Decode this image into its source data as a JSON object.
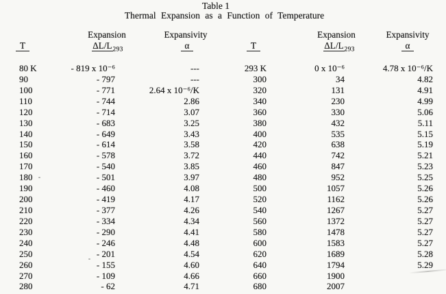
{
  "page": {
    "title": "Table 1",
    "subtitle": "Thermal Expansion as a Function of Temperature"
  },
  "headers": {
    "t": "T",
    "expansion": "Expansion",
    "delta_l": "ΔL/L",
    "delta_l_sub": "293",
    "expansivity": "Expansivity",
    "alpha": "α"
  },
  "left_rows": [
    [
      "80 K",
      "- 819 x 10⁻⁶",
      "---"
    ],
    [
      "90",
      "- 797",
      "---"
    ],
    [
      "100",
      "- 771",
      "2.64 x 10⁻⁶/K"
    ],
    [
      "110",
      "- 744",
      "2.86"
    ],
    [
      "120",
      "- 714",
      "3.07"
    ],
    [
      "130",
      "- 683",
      "3.25"
    ],
    [
      "140",
      "- 649",
      "3.43"
    ],
    [
      "150",
      "- 614",
      "3.58"
    ],
    [
      "160",
      "- 578",
      "3.72"
    ],
    [
      "170",
      "- 540",
      "3.85"
    ],
    [
      "180",
      "- 501",
      "3.97"
    ],
    [
      "190",
      "- 460",
      "4.08"
    ],
    [
      "200",
      "- 419",
      "4.17"
    ],
    [
      "210",
      "- 377",
      "4.26"
    ],
    [
      "220",
      "- 334",
      "4.34"
    ],
    [
      "230",
      "- 290",
      "4.41"
    ],
    [
      "240",
      "- 246",
      "4.48"
    ],
    [
      "250",
      "- 201",
      "4.54"
    ],
    [
      "260",
      "- 155",
      "4.60"
    ],
    [
      "270",
      "- 109",
      "4.66"
    ],
    [
      "280",
      "- 62",
      "4.71"
    ]
  ],
  "right_rows": [
    [
      "293 K",
      "0 x 10⁻⁶",
      "4.78 x 10⁻⁶/K"
    ],
    [
      "300",
      "34",
      "4.82"
    ],
    [
      "320",
      "131",
      "4.91"
    ],
    [
      "340",
      "230",
      "4.99"
    ],
    [
      "360",
      "330",
      "5.06"
    ],
    [
      "380",
      "432",
      "5.11"
    ],
    [
      "400",
      "535",
      "5.15"
    ],
    [
      "420",
      "638",
      "5.19"
    ],
    [
      "440",
      "742",
      "5.21"
    ],
    [
      "460",
      "847",
      "5.23"
    ],
    [
      "480",
      "952",
      "5.25"
    ],
    [
      "500",
      "1057",
      "5.26"
    ],
    [
      "520",
      "1162",
      "5.26"
    ],
    [
      "540",
      "1267",
      "5.27"
    ],
    [
      "560",
      "1372",
      "5.27"
    ],
    [
      "580",
      "1478",
      "5.27"
    ],
    [
      "600",
      "1583",
      "5.27"
    ],
    [
      "620",
      "1689",
      "5.28"
    ],
    [
      "640",
      "1794",
      "5.29"
    ],
    [
      "660",
      "1900",
      ""
    ],
    [
      "680",
      "2007",
      ""
    ]
  ],
  "colors": {
    "ink": "#171717",
    "paper": "#f8f8f5"
  }
}
